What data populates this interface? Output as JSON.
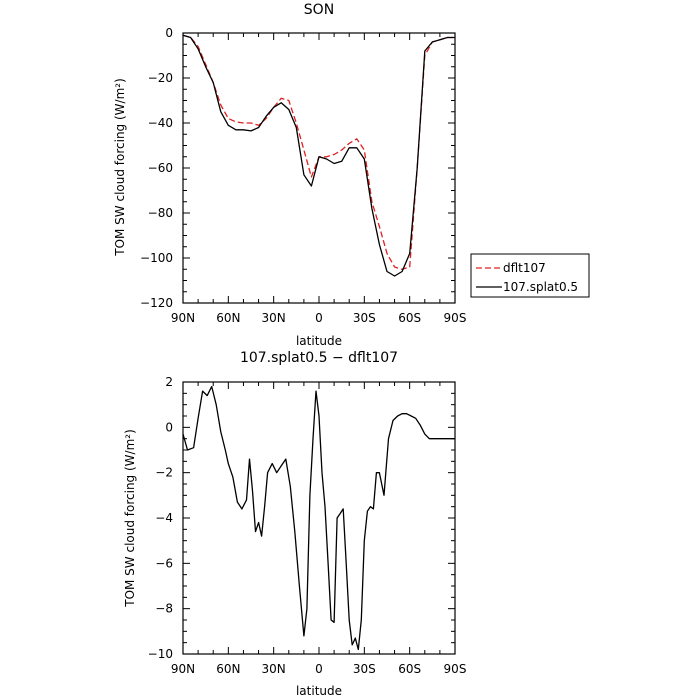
{
  "chart_data": [
    {
      "type": "line",
      "title": "SON",
      "xlabel": "latitude",
      "ylabel": "TOM SW cloud forcing (W/m²)",
      "xlim": [
        90,
        -90
      ],
      "ylim": [
        -120,
        0
      ],
      "x_ticks": [
        90,
        60,
        30,
        0,
        -30,
        -60,
        -90
      ],
      "x_tick_labels": [
        "90N",
        "60N",
        "30N",
        "0",
        "30S",
        "60S",
        "90S"
      ],
      "y_ticks": [
        0,
        -20,
        -40,
        -60,
        -80,
        -100,
        -120
      ],
      "y_tick_labels": [
        "0",
        "−20",
        "−40",
        "−60",
        "−80",
        "−100",
        "−120"
      ],
      "legend": {
        "placement": "right"
      },
      "series": [
        {
          "name": "dflt107",
          "color": "#e02020",
          "dash": "dashed",
          "x": [
            90,
            85,
            80,
            75,
            70,
            65,
            60,
            55,
            50,
            45,
            40,
            35,
            30,
            25,
            20,
            15,
            10,
            5,
            0,
            -5,
            -10,
            -15,
            -20,
            -25,
            -30,
            -35,
            -40,
            -45,
            -50,
            -55,
            -60,
            -65,
            -70,
            -75,
            -80,
            -85,
            -90
          ],
          "values": [
            -1,
            -2,
            -6,
            -14,
            -22,
            -32,
            -38,
            -39.5,
            -40,
            -40,
            -41,
            -38,
            -33,
            -29,
            -30,
            -40,
            -52,
            -64,
            -55,
            -55,
            -54,
            -52,
            -49,
            -47,
            -52,
            -75,
            -86,
            -98,
            -104,
            -105,
            -104,
            -60,
            -10,
            -4,
            -3,
            -2,
            -2
          ]
        },
        {
          "name": "107.splat0.5",
          "color": "#000000",
          "dash": "solid",
          "x": [
            90,
            85,
            80,
            75,
            70,
            65,
            60,
            55,
            50,
            45,
            40,
            35,
            30,
            25,
            20,
            15,
            10,
            5,
            0,
            -5,
            -10,
            -15,
            -20,
            -25,
            -30,
            -35,
            -40,
            -45,
            -50,
            -55,
            -60,
            -65,
            -70,
            -75,
            -80,
            -85,
            -90
          ],
          "values": [
            -1,
            -2,
            -7,
            -15,
            -22,
            -35,
            -41,
            -43,
            -43,
            -43.5,
            -42,
            -37,
            -33,
            -31,
            -34,
            -42,
            -63,
            -68,
            -55,
            -56,
            -58,
            -57,
            -51,
            -51,
            -56,
            -78,
            -94,
            -106,
            -108,
            -106,
            -98,
            -60,
            -8,
            -4,
            -3,
            -2,
            -2
          ]
        }
      ]
    },
    {
      "type": "line",
      "title": "107.splat0.5 − dflt107",
      "xlabel": "latitude",
      "ylabel": "TOM SW cloud forcing (W/m²)",
      "xlim": [
        90,
        -90
      ],
      "ylim": [
        -10,
        2
      ],
      "x_ticks": [
        90,
        60,
        30,
        0,
        -30,
        -60,
        -90
      ],
      "x_tick_labels": [
        "90N",
        "60N",
        "30N",
        "0",
        "30S",
        "60S",
        "90S"
      ],
      "y_ticks": [
        2,
        0,
        -2,
        -4,
        -6,
        -8,
        -10
      ],
      "y_tick_labels": [
        "2",
        "0",
        "−2",
        "−4",
        "−6",
        "−8",
        "−10"
      ],
      "series": [
        {
          "color": "#000000",
          "dash": "solid",
          "x": [
            90,
            87,
            83,
            80,
            77,
            74,
            71,
            68,
            65,
            62,
            60,
            57,
            54,
            51,
            48,
            46,
            44,
            42,
            40,
            38,
            36,
            34,
            31,
            28,
            25,
            22,
            19,
            16,
            13,
            10,
            8,
            6,
            4,
            2,
            0,
            -2,
            -4,
            -6,
            -8,
            -10,
            -12,
            -14,
            -16,
            -18,
            -20,
            -22,
            -24,
            -26,
            -28,
            -30,
            -32,
            -34,
            -36,
            -38,
            -40,
            -43,
            -46,
            -49,
            -52,
            -55,
            -58,
            -61,
            -64,
            -67,
            -70,
            -73,
            -76,
            -80,
            -85,
            -90
          ],
          "values": [
            -0.3,
            -1.0,
            -0.9,
            0.4,
            1.6,
            1.4,
            1.8,
            1.0,
            -0.2,
            -1.0,
            -1.6,
            -2.2,
            -3.3,
            -3.6,
            -3.2,
            -1.4,
            -2.8,
            -4.6,
            -4.2,
            -4.8,
            -3.5,
            -2.0,
            -1.6,
            -2.0,
            -1.7,
            -1.4,
            -2.6,
            -4.6,
            -7.0,
            -9.2,
            -8.0,
            -3.0,
            -0.5,
            1.6,
            0.5,
            -2.0,
            -3.5,
            -6.0,
            -8.5,
            -8.6,
            -4.0,
            -3.8,
            -3.6,
            -6.0,
            -8.5,
            -9.6,
            -9.3,
            -9.8,
            -8.5,
            -5.0,
            -3.7,
            -3.5,
            -3.6,
            -2.0,
            -2.0,
            -3.0,
            -0.5,
            0.3,
            0.5,
            0.6,
            0.6,
            0.5,
            0.4,
            0.1,
            -0.3,
            -0.5,
            -0.5,
            -0.5,
            -0.5,
            -0.5
          ]
        }
      ]
    }
  ]
}
